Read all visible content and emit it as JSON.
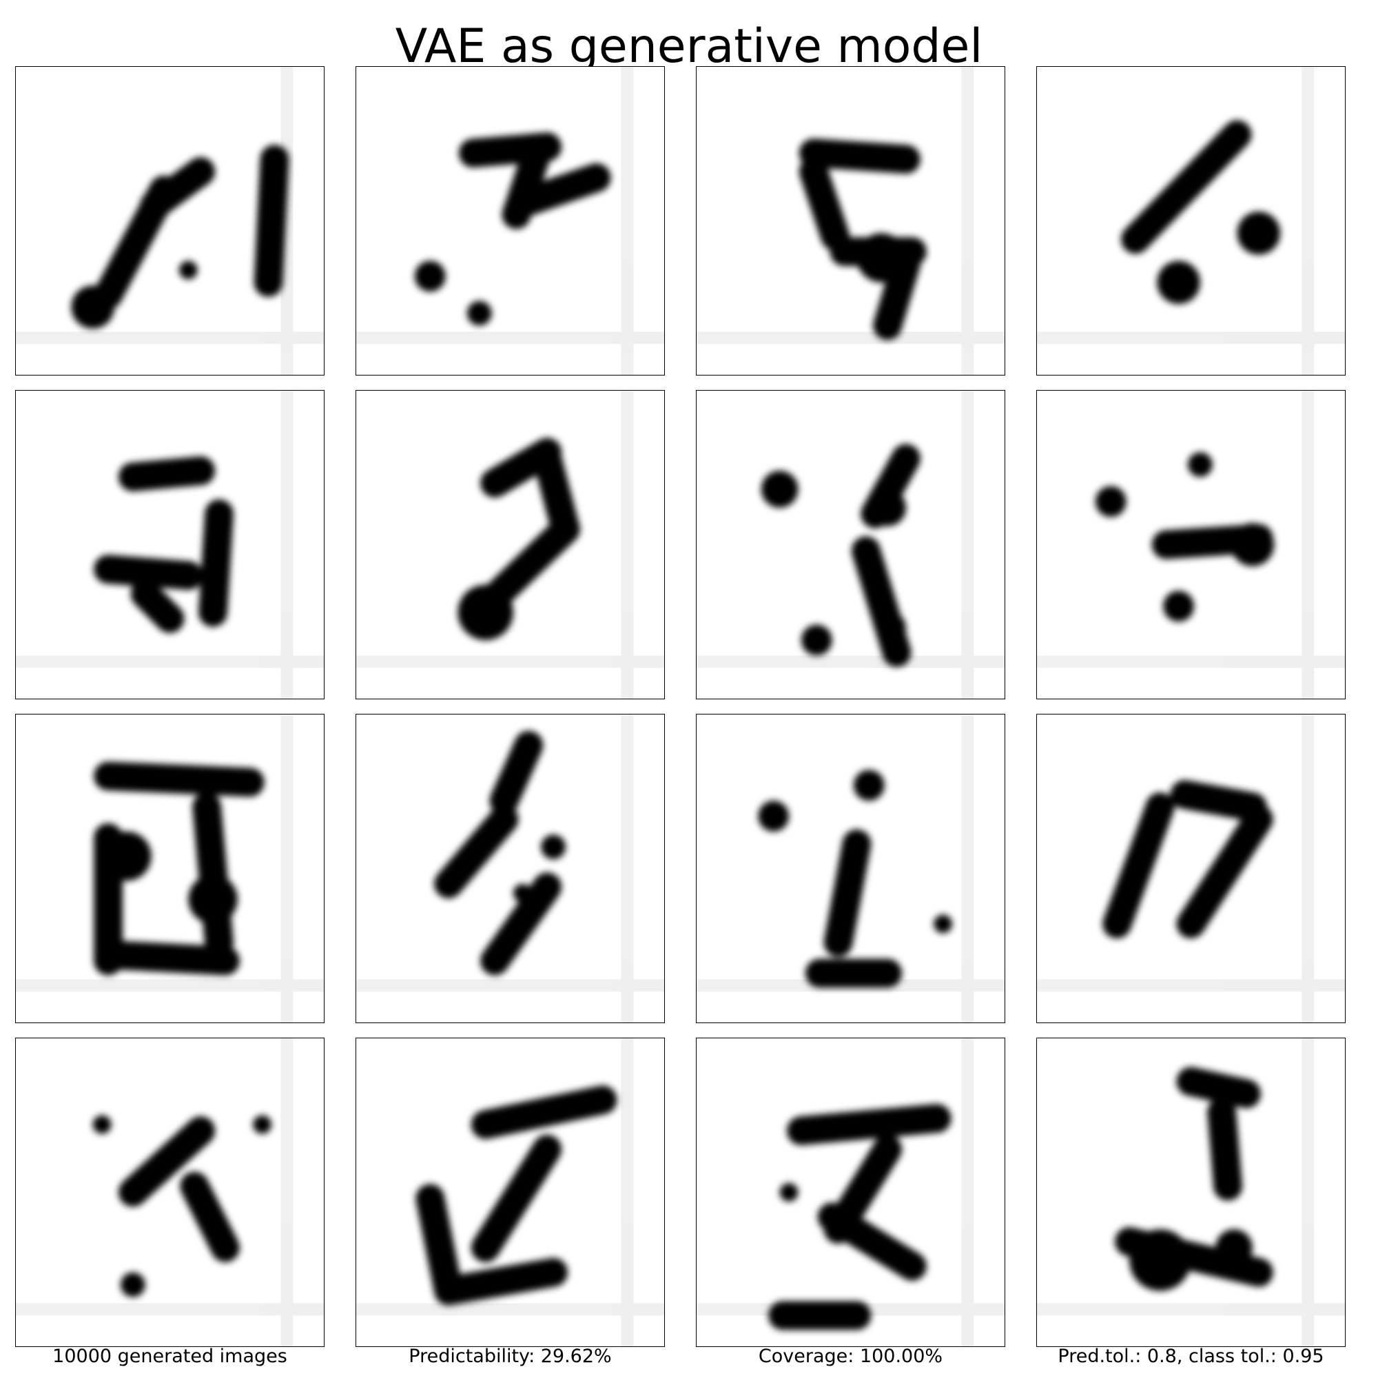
{
  "figure": {
    "title": "VAE as generative model",
    "captions": [
      "10000 generated images",
      "Predictability: 29.62%",
      "Coverage: 100.00%",
      "Pred.tol.: 0.8, class tol.: 0.95"
    ],
    "colors": {
      "ink": "#000000",
      "background": "#ffffff"
    },
    "images": [
      {
        "row": 1,
        "col": 1,
        "strokes": [
          [
            [
              0.3,
              0.74
            ],
            [
              0.48,
              0.4
            ]
          ],
          [
            [
              0.45,
              0.45
            ],
            [
              0.6,
              0.34
            ]
          ],
          [
            [
              0.84,
              0.3
            ],
            [
              0.82,
              0.7
            ]
          ]
        ],
        "blobs": [
          [
            0.25,
            0.78,
            0.07
          ],
          [
            0.56,
            0.66,
            0.03
          ]
        ]
      },
      {
        "row": 1,
        "col": 2,
        "strokes": [
          [
            [
              0.38,
              0.28
            ],
            [
              0.62,
              0.26
            ]
          ],
          [
            [
              0.58,
              0.3
            ],
            [
              0.52,
              0.48
            ]
          ],
          [
            [
              0.55,
              0.44
            ],
            [
              0.78,
              0.36
            ]
          ]
        ],
        "blobs": [
          [
            0.24,
            0.68,
            0.05
          ],
          [
            0.4,
            0.8,
            0.04
          ]
        ]
      },
      {
        "row": 1,
        "col": 3,
        "strokes": [
          [
            [
              0.38,
              0.28
            ],
            [
              0.68,
              0.3
            ]
          ],
          [
            [
              0.38,
              0.34
            ],
            [
              0.45,
              0.55
            ]
          ],
          [
            [
              0.48,
              0.6
            ],
            [
              0.7,
              0.6
            ]
          ],
          [
            [
              0.68,
              0.64
            ],
            [
              0.62,
              0.84
            ]
          ]
        ],
        "blobs": [
          [
            0.6,
            0.62,
            0.08
          ]
        ]
      },
      {
        "row": 1,
        "col": 4,
        "strokes": [
          [
            [
              0.32,
              0.56
            ],
            [
              0.65,
              0.22
            ]
          ]
        ],
        "blobs": [
          [
            0.72,
            0.54,
            0.07
          ],
          [
            0.46,
            0.7,
            0.07
          ]
        ]
      },
      {
        "row": 2,
        "col": 1,
        "strokes": [
          [
            [
              0.38,
              0.28
            ],
            [
              0.6,
              0.26
            ]
          ],
          [
            [
              0.3,
              0.58
            ],
            [
              0.56,
              0.6
            ]
          ],
          [
            [
              0.42,
              0.66
            ],
            [
              0.5,
              0.74
            ]
          ],
          [
            [
              0.66,
              0.4
            ],
            [
              0.64,
              0.72
            ]
          ]
        ],
        "blobs": []
      },
      {
        "row": 2,
        "col": 2,
        "strokes": [
          [
            [
              0.45,
              0.3
            ],
            [
              0.62,
              0.2
            ]
          ],
          [
            [
              0.62,
              0.22
            ],
            [
              0.68,
              0.45
            ]
          ],
          [
            [
              0.68,
              0.45
            ],
            [
              0.4,
              0.72
            ]
          ]
        ],
        "blobs": [
          [
            0.42,
            0.72,
            0.09
          ]
        ]
      },
      {
        "row": 2,
        "col": 3,
        "strokes": [
          [
            [
              0.55,
              0.52
            ],
            [
              0.65,
              0.85
            ]
          ],
          [
            [
              0.68,
              0.22
            ],
            [
              0.58,
              0.4
            ]
          ]
        ],
        "blobs": [
          [
            0.27,
            0.32,
            0.06
          ],
          [
            0.62,
            0.38,
            0.06
          ],
          [
            0.39,
            0.81,
            0.05
          ],
          [
            0.63,
            0.77,
            0.05
          ]
        ]
      },
      {
        "row": 2,
        "col": 4,
        "strokes": [
          [
            [
              0.42,
              0.5
            ],
            [
              0.72,
              0.48
            ]
          ]
        ],
        "blobs": [
          [
            0.24,
            0.36,
            0.05
          ],
          [
            0.53,
            0.24,
            0.04
          ],
          [
            0.7,
            0.5,
            0.07
          ],
          [
            0.46,
            0.7,
            0.05
          ]
        ]
      },
      {
        "row": 3,
        "col": 1,
        "strokes": [
          [
            [
              0.3,
              0.2
            ],
            [
              0.76,
              0.22
            ]
          ],
          [
            [
              0.3,
              0.4
            ],
            [
              0.3,
              0.8
            ]
          ],
          [
            [
              0.62,
              0.3
            ],
            [
              0.66,
              0.74
            ]
          ],
          [
            [
              0.3,
              0.78
            ],
            [
              0.68,
              0.8
            ]
          ]
        ],
        "blobs": [
          [
            0.36,
            0.46,
            0.08
          ],
          [
            0.64,
            0.6,
            0.08
          ]
        ]
      },
      {
        "row": 3,
        "col": 2,
        "strokes": [
          [
            [
              0.3,
              0.55
            ],
            [
              0.48,
              0.34
            ]
          ],
          [
            [
              0.62,
              0.56
            ],
            [
              0.45,
              0.8
            ]
          ],
          [
            [
              0.56,
              0.1
            ],
            [
              0.48,
              0.28
            ]
          ]
        ],
        "blobs": [
          [
            0.64,
            0.43,
            0.04
          ],
          [
            0.54,
            0.58,
            0.03
          ]
        ]
      },
      {
        "row": 3,
        "col": 3,
        "strokes": [
          [
            [
              0.52,
              0.42
            ],
            [
              0.46,
              0.74
            ]
          ],
          [
            [
              0.4,
              0.84
            ],
            [
              0.62,
              0.84
            ]
          ]
        ],
        "blobs": [
          [
            0.25,
            0.33,
            0.05
          ],
          [
            0.56,
            0.23,
            0.05
          ],
          [
            0.8,
            0.68,
            0.03
          ]
        ]
      },
      {
        "row": 3,
        "col": 4,
        "strokes": [
          [
            [
              0.4,
              0.3
            ],
            [
              0.26,
              0.68
            ]
          ],
          [
            [
              0.48,
              0.26
            ],
            [
              0.7,
              0.3
            ]
          ],
          [
            [
              0.72,
              0.34
            ],
            [
              0.5,
              0.68
            ]
          ]
        ],
        "blobs": []
      },
      {
        "row": 4,
        "col": 1,
        "strokes": [
          [
            [
              0.38,
              0.5
            ],
            [
              0.6,
              0.3
            ]
          ],
          [
            [
              0.58,
              0.48
            ],
            [
              0.68,
              0.68
            ]
          ]
        ],
        "blobs": [
          [
            0.28,
            0.28,
            0.03
          ],
          [
            0.8,
            0.28,
            0.03
          ],
          [
            0.38,
            0.8,
            0.04
          ]
        ]
      },
      {
        "row": 4,
        "col": 2,
        "strokes": [
          [
            [
              0.42,
              0.28
            ],
            [
              0.8,
              0.2
            ]
          ],
          [
            [
              0.62,
              0.36
            ],
            [
              0.42,
              0.68
            ]
          ],
          [
            [
              0.24,
              0.52
            ],
            [
              0.3,
              0.82
            ]
          ],
          [
            [
              0.3,
              0.82
            ],
            [
              0.64,
              0.76
            ]
          ]
        ],
        "blobs": []
      },
      {
        "row": 4,
        "col": 3,
        "strokes": [
          [
            [
              0.34,
              0.3
            ],
            [
              0.78,
              0.26
            ]
          ],
          [
            [
              0.62,
              0.36
            ],
            [
              0.46,
              0.62
            ]
          ],
          [
            [
              0.44,
              0.58
            ],
            [
              0.7,
              0.74
            ]
          ],
          [
            [
              0.28,
              0.9
            ],
            [
              0.52,
              0.9
            ]
          ]
        ],
        "blobs": [
          [
            0.3,
            0.5,
            0.03
          ]
        ]
      },
      {
        "row": 4,
        "col": 4,
        "strokes": [
          [
            [
              0.5,
              0.14
            ],
            [
              0.68,
              0.18
            ]
          ],
          [
            [
              0.6,
              0.24
            ],
            [
              0.62,
              0.48
            ]
          ],
          [
            [
              0.3,
              0.66
            ],
            [
              0.72,
              0.76
            ]
          ]
        ],
        "blobs": [
          [
            0.4,
            0.72,
            0.1
          ],
          [
            0.64,
            0.68,
            0.06
          ]
        ]
      }
    ]
  }
}
